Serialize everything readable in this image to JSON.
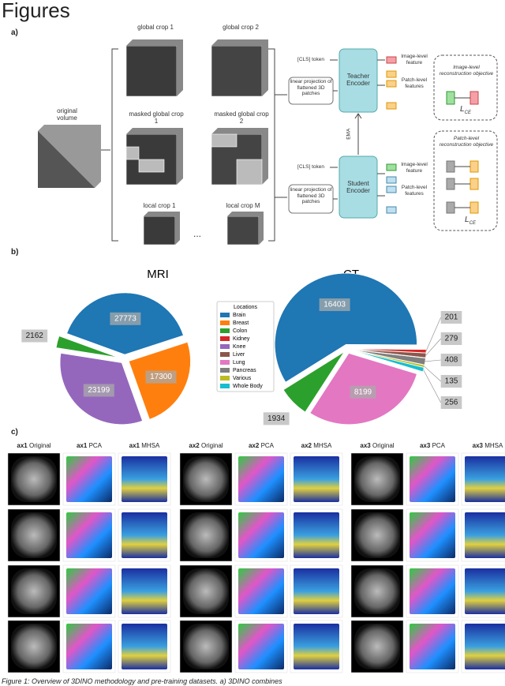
{
  "header": {
    "title": "Figures"
  },
  "panel_labels": [
    "a)",
    "b)",
    "c)"
  ],
  "diagram": {
    "original_volume": "original volume",
    "crops": [
      "global crop 1",
      "global crop 2",
      "masked global crop 1",
      "masked global crop 2",
      "local crop 1",
      "local crop M"
    ],
    "ellipsis": "...",
    "cls_token": [
      "[CLS] token",
      "[CLS] token"
    ],
    "projection": [
      "linear projection of flattened 3D patches",
      "linear projection of flattened 3D patches"
    ],
    "teacher": "Teacher Encoder",
    "student": "Student Encoder",
    "ema": "EMA",
    "image_feature": [
      "Image-level feature",
      "Image-level feature"
    ],
    "patch_features": [
      "Patch-level features",
      "Patch-level features"
    ],
    "objectives": [
      "Image-level reconstruction objective",
      "Patch-level reconstruction objective"
    ],
    "losses": [
      {
        "symbol": "L",
        "subscript": "CE"
      },
      {
        "symbol": "L",
        "subscript": "CE"
      }
    ]
  },
  "legend": {
    "title": "Locations",
    "items": [
      "Brain",
      "Breast",
      "Colon",
      "Kidney",
      "Knee",
      "Liver",
      "Lung",
      "Pancreas",
      "Various",
      "Whole Body"
    ],
    "colors": [
      "#1f77b4",
      "#ff7f0e",
      "#2ca02c",
      "#d62728",
      "#9467bd",
      "#8c564b",
      "#e377c2",
      "#7f7f7f",
      "#bcbd22",
      "#17becf"
    ]
  },
  "chart_data": [
    {
      "type": "pie",
      "title": "MRI",
      "categories": [
        "Brain",
        "Breast",
        "Knee",
        "Colon"
      ],
      "values": [
        27773,
        17300,
        23199,
        2162
      ]
    },
    {
      "type": "pie",
      "title": "CT",
      "categories": [
        "Brain",
        "Kidney",
        "Liver",
        "Pancreas",
        "Various",
        "Whole Body",
        "Lung",
        "Colon"
      ],
      "values": [
        16403,
        201,
        279,
        408,
        135,
        256,
        8199,
        1934
      ]
    }
  ],
  "images": {
    "headers": [
      {
        "axis": "ax1",
        "view": "Original"
      },
      {
        "axis": "ax1",
        "view": "PCA"
      },
      {
        "axis": "ax1",
        "view": "MHSA"
      },
      {
        "axis": "ax2",
        "view": "Original"
      },
      {
        "axis": "ax2",
        "view": "PCA"
      },
      {
        "axis": "ax2",
        "view": "MHSA"
      },
      {
        "axis": "ax3",
        "view": "Original"
      },
      {
        "axis": "ax3",
        "view": "PCA"
      },
      {
        "axis": "ax3",
        "view": "MHSA"
      }
    ]
  },
  "caption": "Figure 1: Overview of 3DINO methodology and pre-training datasets. a) 3DINO combines"
}
